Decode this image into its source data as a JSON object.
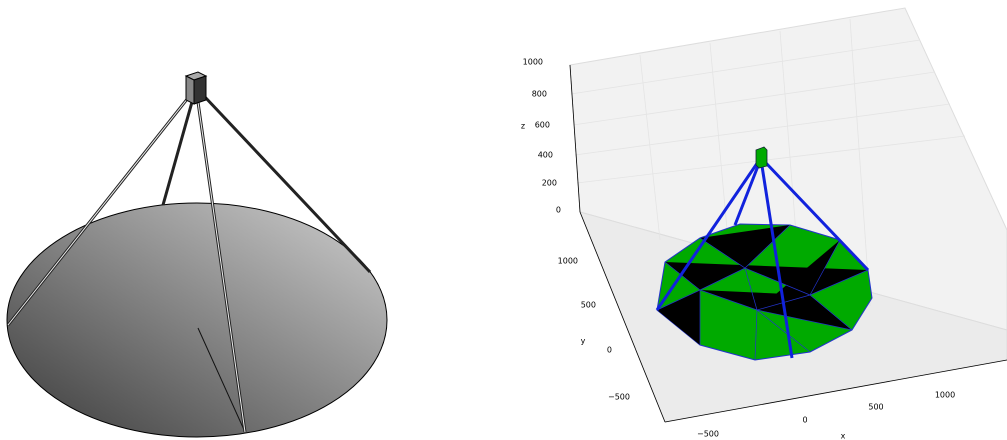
{
  "right_plot": {
    "axes": {
      "z": {
        "label": "z",
        "ticks": [
          "0",
          "200",
          "400",
          "600",
          "800",
          "1000"
        ]
      },
      "y": {
        "label": "y",
        "ticks": [
          "−500",
          "0",
          "500",
          "1000"
        ]
      },
      "x": {
        "label": "x",
        "ticks": [
          "−500",
          "0",
          "500",
          "1000"
        ]
      }
    }
  }
}
